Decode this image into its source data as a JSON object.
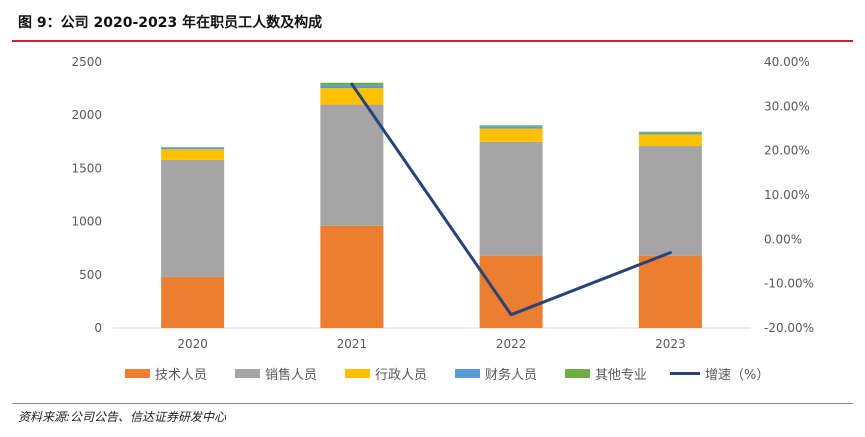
{
  "title": "图 9：公司 2020-2023 年在职员工人数及构成",
  "source": "资料来源:公司公告、信达证券研发中心",
  "chart_data": {
    "type": "bar",
    "stacked": true,
    "categories": [
      "2020",
      "2021",
      "2022",
      "2023"
    ],
    "series": [
      {
        "name": "技术人员",
        "values": [
          480,
          960,
          680,
          680
        ],
        "color": "#ed7d31"
      },
      {
        "name": "销售人员",
        "values": [
          1100,
          1140,
          1070,
          1030
        ],
        "color": "#a5a5a5"
      },
      {
        "name": "行政人员",
        "values": [
          100,
          155,
          125,
          110
        ],
        "color": "#ffc000"
      },
      {
        "name": "财务人员",
        "values": [
          15,
          25,
          20,
          15
        ],
        "color": "#5b9bd5"
      },
      {
        "name": "其他专业",
        "values": [
          5,
          25,
          10,
          10
        ],
        "color": "#70ad47"
      }
    ],
    "line_series": {
      "name": "增速（%）",
      "values": [
        null,
        35.0,
        -17.0,
        -3.0
      ],
      "color": "#264478",
      "axis": "right"
    },
    "left_axis": {
      "min": 0,
      "max": 2500,
      "step": 500,
      "ticks": [
        "0",
        "500",
        "1000",
        "1500",
        "2000",
        "2500"
      ]
    },
    "right_axis": {
      "min": -20,
      "max": 40,
      "step": 10,
      "ticks": [
        "-20.00%",
        "-10.00%",
        "0.00%",
        "10.00%",
        "20.00%",
        "30.00%",
        "40.00%"
      ]
    },
    "legend_position": "bottom"
  }
}
